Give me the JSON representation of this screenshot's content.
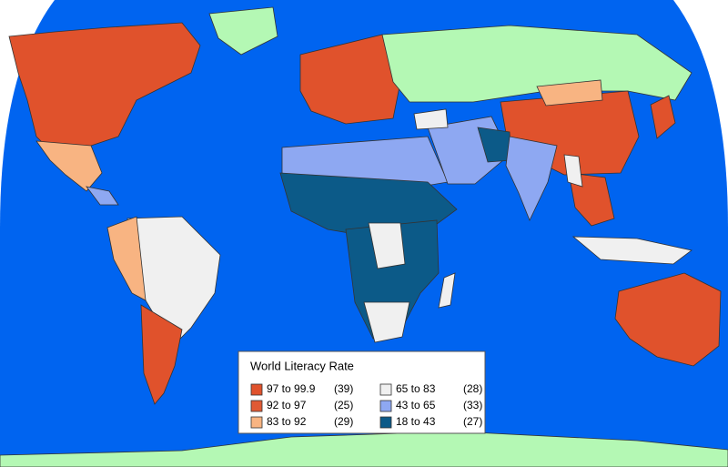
{
  "legend": {
    "title": "World Literacy Rate",
    "entries": [
      {
        "range": "97 to 99.9",
        "count": "(39)",
        "color": "#e0522c"
      },
      {
        "range": "92 to 97",
        "count": "(25)",
        "color": "#e05a34"
      },
      {
        "range": "83 to 92",
        "count": "(29)",
        "color": "#f8b482"
      },
      {
        "range": "65 to 83",
        "count": "(28)",
        "color": "#f0f0f0"
      },
      {
        "range": "43 to 65",
        "count": "(33)",
        "color": "#8ea8f2"
      },
      {
        "range": "18 to 43",
        "count": "(27)",
        "color": "#0c5a88"
      }
    ]
  }
}
